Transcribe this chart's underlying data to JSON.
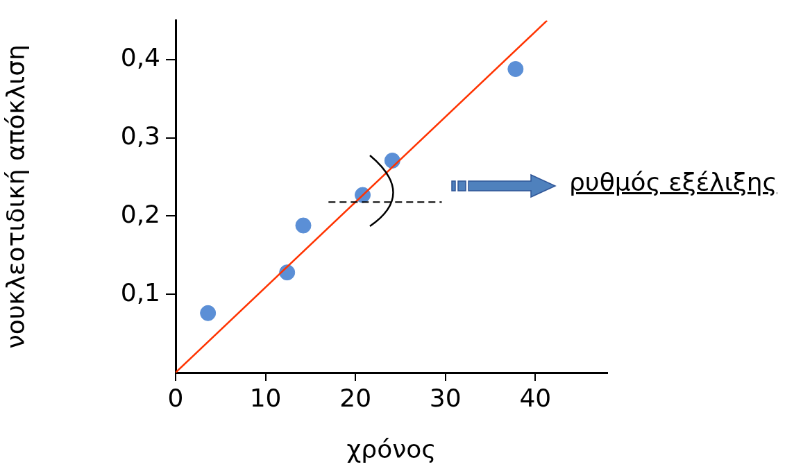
{
  "chart_data": {
    "type": "scatter",
    "xlabel": "χρόνος",
    "ylabel": "νουκλεοτιδική απόκλιση",
    "xlim": [
      0,
      48
    ],
    "ylim": [
      0,
      0.45
    ],
    "xticks": [
      0,
      10,
      20,
      30,
      40
    ],
    "yticks": [
      {
        "value": 0.1,
        "label": "0,1"
      },
      {
        "value": 0.2,
        "label": "0,2"
      },
      {
        "value": 0.3,
        "label": "0,3"
      },
      {
        "value": 0.4,
        "label": "0,4"
      }
    ],
    "grid": false,
    "legend": false,
    "series": [
      {
        "marker": "circle",
        "color": "#5b8fd6",
        "x": [
          3.6,
          12.4,
          14.2,
          20.8,
          24.1,
          37.8
        ],
        "values": [
          0.076,
          0.128,
          0.188,
          0.227,
          0.271,
          0.388
        ]
      },
      {
        "type": "line",
        "marker": "none",
        "line_style": "solid",
        "color": "#ff3300",
        "x": [
          0,
          41.3
        ],
        "values": [
          0,
          0.45
        ]
      },
      {
        "type": "line",
        "marker": "none",
        "line_style": "dashed",
        "color": "#000000",
        "x": [
          17,
          29.6
        ],
        "values": [
          0.218,
          0.218
        ]
      }
    ],
    "annotations": [
      "ρυθμός εξέλιξης"
    ]
  }
}
